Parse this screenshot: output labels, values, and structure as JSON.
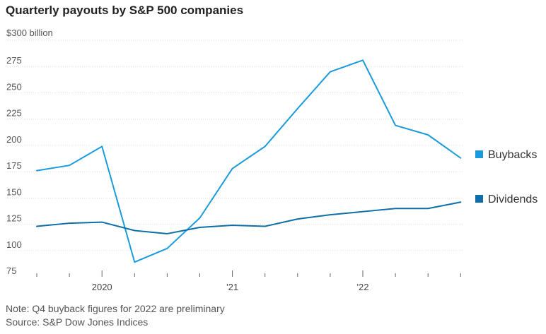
{
  "title": "Quarterly payouts by S&P 500 companies",
  "footer": {
    "note": "Note: Q4 buyback figures for 2022 are preliminary",
    "source": "Source: S&P Dow Jones Indices"
  },
  "colors": {
    "buybacks": "#1a9bdb",
    "dividends": "#0e6fa8"
  },
  "chart_data": {
    "type": "line",
    "x": [
      "2019-Q3",
      "2019-Q4",
      "2020-Q1",
      "2020-Q2",
      "2020-Q3",
      "2020-Q4",
      "2021-Q1",
      "2021-Q2",
      "2021-Q3",
      "2021-Q4",
      "2022-Q1",
      "2022-Q2",
      "2022-Q3",
      "2022-Q4"
    ],
    "series": [
      {
        "name": "Buybacks",
        "values": [
          176,
          181,
          199,
          89,
          102,
          131,
          178,
          199,
          235,
          270,
          281,
          219,
          210,
          188
        ]
      },
      {
        "name": "Dividends",
        "values": [
          123,
          126,
          127,
          119,
          116,
          122,
          124,
          123,
          130,
          134,
          137,
          140,
          140,
          146
        ]
      }
    ],
    "ylim": [
      75,
      300
    ],
    "yticks": [
      {
        "value": 300,
        "label": "$300 billion"
      },
      {
        "value": 275,
        "label": "275"
      },
      {
        "value": 250,
        "label": "250"
      },
      {
        "value": 225,
        "label": "225"
      },
      {
        "value": 200,
        "label": "200"
      },
      {
        "value": 175,
        "label": "175"
      },
      {
        "value": 150,
        "label": "150"
      },
      {
        "value": 125,
        "label": "125"
      },
      {
        "value": 100,
        "label": "100"
      },
      {
        "value": 75,
        "label": "75"
      }
    ],
    "xtick_labels": [
      {
        "at": "2020-Q1",
        "label": "2020"
      },
      {
        "at": "2021-Q1",
        "label": "'21"
      },
      {
        "at": "2022-Q1",
        "label": "'22"
      }
    ],
    "grid": true,
    "legend": "right"
  }
}
